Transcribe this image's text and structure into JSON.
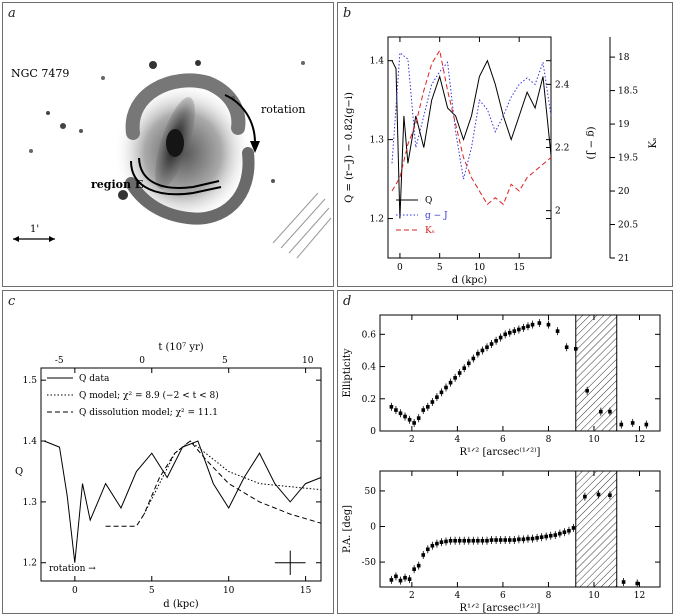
{
  "panels": {
    "a": "a",
    "b": "b",
    "c": "c",
    "d": "d"
  },
  "image_a": {
    "galaxy_label": "NGC 7479",
    "rotation_label": "rotation",
    "region_label": "region E",
    "scale_label": "1'"
  },
  "chart_data": [
    {
      "panel": "b",
      "type": "line",
      "xlabel": "d (kpc)",
      "ylabel_left": "Q = (r−J) − 0.82(g−i)",
      "ylabel_mid": "(g − J)",
      "ylabel_right": "Kₛ",
      "xlim": [
        -1.5,
        19
      ],
      "ylim_left": [
        1.15,
        1.43
      ],
      "ylim_mid": [
        1.85,
        2.55
      ],
      "ylim_right": [
        21,
        17.7
      ],
      "xticks": [
        0,
        5,
        10,
        15
      ],
      "yticks_left": [
        1.2,
        1.3,
        1.4
      ],
      "yticks_mid": [
        2,
        2.2,
        2.4
      ],
      "yticks_right": [
        18,
        18.5,
        19,
        19.5,
        20,
        20.5,
        21
      ],
      "legend": [
        "Q",
        "g − J",
        "Kₛ"
      ],
      "series": [
        {
          "name": "Q",
          "color": "#000000",
          "style": "solid",
          "axis": "left",
          "x": [
            -1,
            -0.5,
            0,
            0.5,
            1,
            1.5,
            2,
            3,
            4,
            5,
            6,
            7,
            8,
            9,
            10,
            11,
            12,
            13,
            14,
            15,
            16,
            17,
            18,
            19
          ],
          "y": [
            1.4,
            1.39,
            1.2,
            1.33,
            1.27,
            1.3,
            1.33,
            1.29,
            1.35,
            1.38,
            1.34,
            1.33,
            1.3,
            1.33,
            1.38,
            1.4,
            1.37,
            1.33,
            1.3,
            1.33,
            1.36,
            1.34,
            1.38,
            1.28
          ]
        },
        {
          "name": "g − J",
          "color": "#3333dd",
          "style": "dotted",
          "axis": "mid",
          "x": [
            -1,
            0,
            1,
            2,
            3,
            4,
            5,
            6,
            7,
            8,
            9,
            10,
            11,
            12,
            13,
            14,
            15,
            16,
            17,
            18,
            19
          ],
          "y": [
            2.15,
            2.5,
            2.48,
            2.2,
            2.3,
            2.4,
            2.44,
            2.47,
            2.25,
            2.1,
            2.2,
            2.35,
            2.32,
            2.25,
            2.3,
            2.36,
            2.4,
            2.42,
            2.4,
            2.47,
            2.3
          ]
        },
        {
          "name": "Kₛ",
          "color": "#dd2222",
          "style": "dashed",
          "axis": "right",
          "x": [
            -1,
            0,
            1,
            2,
            3,
            4,
            5,
            6,
            7,
            8,
            9,
            10,
            11,
            12,
            13,
            14,
            15,
            16,
            17,
            18,
            19
          ],
          "y": [
            20.0,
            19.8,
            19.3,
            19.0,
            18.5,
            18.1,
            17.9,
            18.5,
            19.0,
            19.5,
            19.8,
            20.0,
            20.2,
            20.1,
            20.2,
            19.9,
            20.0,
            19.8,
            19.7,
            19.6,
            19.5
          ]
        }
      ]
    },
    {
      "panel": "c",
      "type": "line",
      "xlabel": "d (kpc)",
      "top_axis_label": "t  (10⁷ yr)",
      "ylabel": "Q",
      "xlim": [
        -2.2,
        16
      ],
      "ylim": [
        1.17,
        1.52
      ],
      "top_xlim": [
        -6.1,
        10.8
      ],
      "xticks": [
        0,
        5,
        10,
        15
      ],
      "top_xticks": [
        -5,
        0,
        5,
        10
      ],
      "yticks": [
        1.2,
        1.3,
        1.4,
        1.5
      ],
      "legend": [
        "Q data",
        "Q model; χ² = 8.9 (−2 < t < 8)",
        "Q dissolution model; χ² = 11.1"
      ],
      "annotation": "rotation →",
      "series": [
        {
          "name": "Q data",
          "style": "solid",
          "x": [
            -2,
            -1,
            -0.5,
            0,
            0.5,
            1,
            1.5,
            2,
            3,
            4,
            5,
            6,
            7,
            8,
            9,
            10,
            11,
            12,
            13,
            14,
            15,
            16
          ],
          "y": [
            1.4,
            1.39,
            1.31,
            1.2,
            1.33,
            1.27,
            1.3,
            1.33,
            1.29,
            1.35,
            1.38,
            1.34,
            1.39,
            1.4,
            1.33,
            1.29,
            1.34,
            1.38,
            1.33,
            1.3,
            1.33,
            1.34
          ]
        },
        {
          "name": "Q model",
          "style": "dotted",
          "x": [
            4.5,
            5.5,
            6.5,
            7.5,
            8.5,
            10,
            12,
            14,
            16
          ],
          "y": [
            1.28,
            1.33,
            1.38,
            1.4,
            1.38,
            1.35,
            1.33,
            1.325,
            1.32
          ]
        },
        {
          "name": "Q dissolution model",
          "style": "dashed",
          "x": [
            2,
            3,
            4,
            4.5,
            5.5,
            6.5,
            7.5,
            8.5,
            10,
            12,
            14,
            16
          ],
          "y": [
            1.26,
            1.26,
            1.26,
            1.28,
            1.34,
            1.38,
            1.4,
            1.37,
            1.33,
            1.3,
            1.28,
            1.265
          ]
        }
      ],
      "error_bar": {
        "x": 14,
        "y": 1.2,
        "xerr": 1,
        "yerr": 0.02
      }
    },
    {
      "panel": "d-top",
      "type": "scatter",
      "xlabel": "R¹ᐟ² [arcsec⁽¹ᐟ²⁾]",
      "ylabel": "Ellipticity",
      "xlim": [
        0.6,
        12.9
      ],
      "ylim": [
        0,
        0.72
      ],
      "xticks": [
        2,
        4,
        6,
        8,
        10,
        12
      ],
      "yticks": [
        0,
        0.2,
        0.4,
        0.6
      ],
      "hatched_region": [
        9.2,
        11.0
      ],
      "x": [
        1.1,
        1.3,
        1.5,
        1.7,
        1.9,
        2.1,
        2.3,
        2.5,
        2.7,
        2.9,
        3.1,
        3.3,
        3.5,
        3.7,
        3.9,
        4.1,
        4.3,
        4.5,
        4.7,
        4.9,
        5.1,
        5.3,
        5.5,
        5.7,
        5.9,
        6.1,
        6.3,
        6.5,
        6.7,
        6.9,
        7.1,
        7.3,
        7.6,
        8.0,
        8.4,
        8.8,
        9.2,
        9.7,
        10.3,
        10.7,
        11.2,
        11.7,
        12.3
      ],
      "y": [
        0.15,
        0.13,
        0.11,
        0.09,
        0.07,
        0.05,
        0.08,
        0.13,
        0.15,
        0.18,
        0.21,
        0.24,
        0.27,
        0.3,
        0.33,
        0.36,
        0.39,
        0.42,
        0.45,
        0.48,
        0.5,
        0.52,
        0.54,
        0.56,
        0.58,
        0.6,
        0.61,
        0.62,
        0.63,
        0.64,
        0.65,
        0.66,
        0.67,
        0.66,
        0.62,
        0.52,
        0.51,
        0.25,
        0.12,
        0.12,
        0.04,
        0.05,
        0.04
      ]
    },
    {
      "panel": "d-bottom",
      "type": "scatter",
      "xlabel": "R¹ᐟ² [arcsec⁽¹ᐟ²⁾]",
      "ylabel": "P.A. [deg]",
      "xlim": [
        0.6,
        12.9
      ],
      "ylim": [
        -85,
        78
      ],
      "xticks": [
        2,
        4,
        6,
        8,
        10,
        12
      ],
      "yticks": [
        -50,
        0,
        50
      ],
      "hatched_region": [
        9.2,
        11.0
      ],
      "x": [
        1.1,
        1.3,
        1.5,
        1.7,
        1.9,
        2.1,
        2.3,
        2.5,
        2.7,
        2.9,
        3.1,
        3.3,
        3.5,
        3.7,
        3.9,
        4.1,
        4.3,
        4.5,
        4.7,
        4.9,
        5.1,
        5.3,
        5.5,
        5.7,
        5.9,
        6.1,
        6.3,
        6.5,
        6.7,
        6.9,
        7.1,
        7.3,
        7.5,
        7.7,
        7.9,
        8.1,
        8.3,
        8.5,
        8.7,
        8.9,
        9.1,
        9.6,
        10.2,
        10.7,
        11.3,
        11.9
      ],
      "y": [
        -75,
        -70,
        -76,
        -72,
        -74,
        -60,
        -55,
        -40,
        -32,
        -27,
        -24,
        -22,
        -21,
        -20,
        -20,
        -20,
        -20,
        -20,
        -20,
        -20,
        -20,
        -20,
        -19,
        -19,
        -19,
        -19,
        -19,
        -19,
        -18,
        -18,
        -17,
        -17,
        -16,
        -15,
        -14,
        -13,
        -12,
        -10,
        -8,
        -6,
        -2,
        42,
        45,
        44,
        -78,
        -80
      ]
    }
  ]
}
